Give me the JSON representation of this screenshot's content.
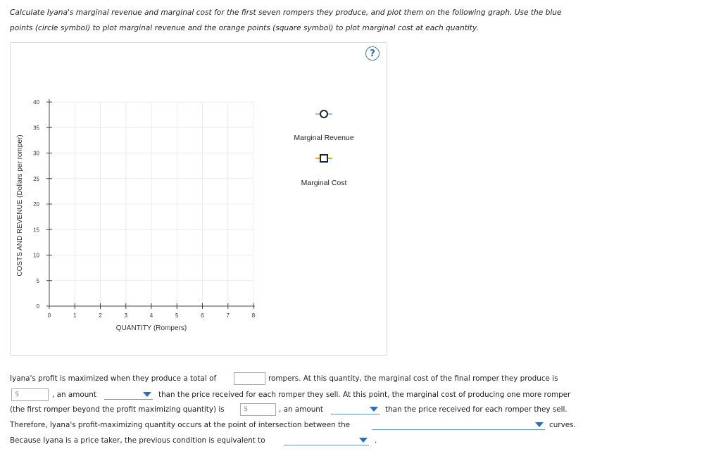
{
  "instructions": {
    "line1": "Calculate Iyana's marginal revenue and marginal cost for the first seven rompers they produce, and plot them on the following graph. Use the blue",
    "line2": "points (circle symbol) to plot marginal revenue and the orange points (square symbol) to plot marginal cost at each quantity."
  },
  "help_label": "?",
  "chart_data": {
    "type": "scatter",
    "xlabel": "QUANTITY (Rompers)",
    "ylabel": "COSTS AND REVENUE (Dollars per romper)",
    "xlim": [
      0,
      8
    ],
    "ylim": [
      0,
      40
    ],
    "x_ticks": [
      "0",
      "1",
      "2",
      "3",
      "4",
      "5",
      "6",
      "7",
      "8"
    ],
    "y_ticks": [
      "0",
      "5",
      "10",
      "15",
      "20",
      "25",
      "30",
      "35",
      "40"
    ],
    "grid": true,
    "legend": [
      {
        "name": "Marginal Revenue",
        "marker": "circle",
        "color": "#2e6db4"
      },
      {
        "name": "Marginal Cost",
        "marker": "square",
        "color": "#f5a31a"
      }
    ],
    "series": []
  },
  "questions": {
    "q1_pre": "Iyana's profit is maximized when they produce a total of",
    "q1_post": "rompers. At this quantity, the marginal cost of the final romper they produce is",
    "dollar": "$",
    "q2_mid": ", an amount",
    "q2_post": "than the price received for each romper they sell. At this point, the marginal cost of producing one more romper",
    "q3_pre": "(the first romper beyond the profit maximizing quantity) is",
    "q3_mid": ", an amount",
    "q3_post": "than the price received for each romper they sell.",
    "q4_pre": "Therefore, Iyana's profit-maximizing quantity occurs at the point of intersection between the",
    "q4_post": "curves.",
    "q5_pre": "Because Iyana is a price taker, the previous condition is equivalent to",
    "q5_post": "."
  }
}
